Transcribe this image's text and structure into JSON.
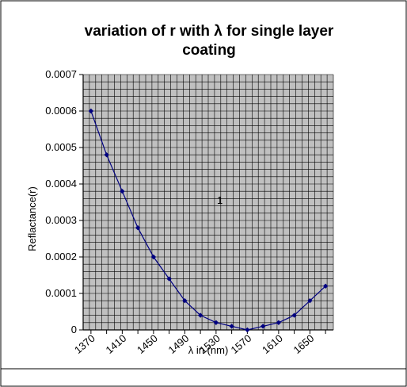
{
  "chart_data": {
    "type": "line",
    "title_line1": "variation of r with λ for single layer",
    "title_line2": "coating",
    "xlabel": "λ in (nm)",
    "ylabel": "Reflactance(r)",
    "annotation": "1",
    "x": [
      1370,
      1390,
      1410,
      1430,
      1450,
      1470,
      1490,
      1510,
      1530,
      1550,
      1570,
      1590,
      1610,
      1630,
      1650,
      1670
    ],
    "values": [
      0.0006,
      0.00048,
      0.00038,
      0.00028,
      0.0002,
      0.00014,
      8e-05,
      4e-05,
      2e-05,
      1e-05,
      0,
      1e-05,
      2e-05,
      4e-05,
      8e-05,
      0.00012
    ],
    "ylim": [
      0,
      0.0007
    ],
    "yticks": [
      "0",
      "0.0001",
      "0.0002",
      "0.0003",
      "0.0004",
      "0.0005",
      "0.0006",
      "0.0007"
    ],
    "xticks": [
      "1370",
      "1410",
      "1450",
      "1490",
      "1530",
      "1570",
      "1610",
      "1650"
    ],
    "grid": true,
    "line_color": "#000080",
    "plot_bg": "#c0c0c0",
    "grid_color": "#000000"
  }
}
